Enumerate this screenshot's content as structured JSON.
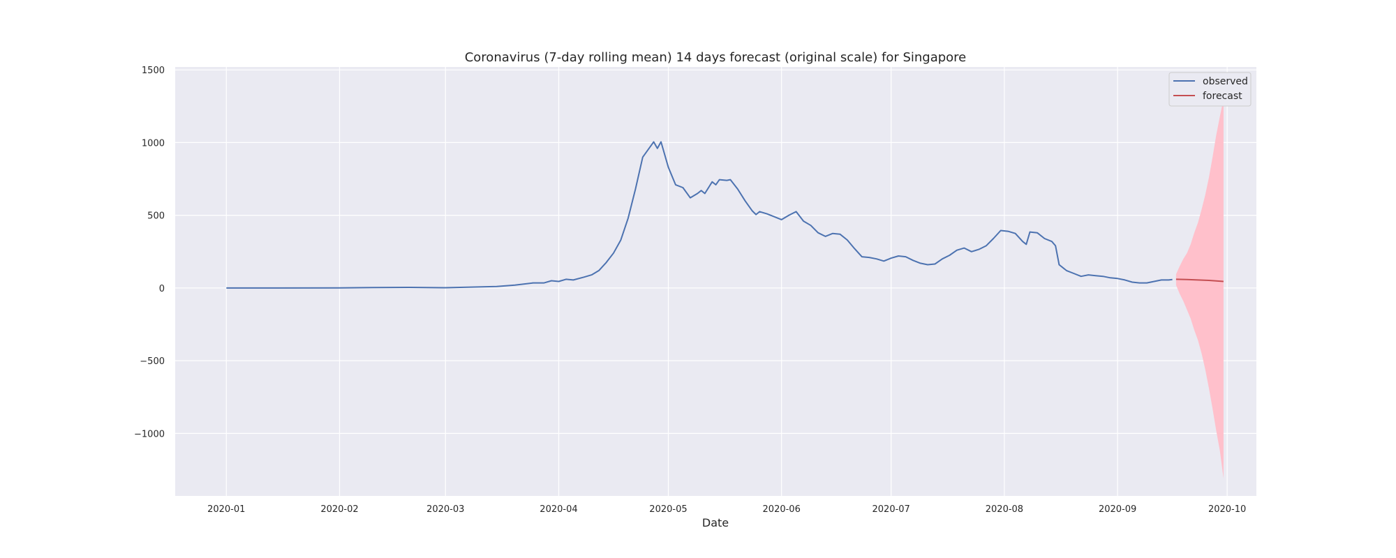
{
  "chart_data": {
    "type": "line",
    "title": "Coronavirus (7-day rolling mean) 14 days forecast (original scale) for Singapore",
    "xlabel": "Date",
    "ylabel": "",
    "x_ticks": [
      "2020-01",
      "2020-02",
      "2020-03",
      "2020-04",
      "2020-05",
      "2020-06",
      "2020-07",
      "2020-08",
      "2020-09",
      "2020-10"
    ],
    "y_ticks": [
      "1500",
      "1000",
      "500",
      "0",
      "−500",
      "−1000"
    ],
    "y_tick_values": [
      1500,
      1000,
      500,
      0,
      -500,
      -1000
    ],
    "xlim": [
      "2019-12-18",
      "2020-10-09"
    ],
    "ylim": [
      -1430,
      1520
    ],
    "grid": true,
    "legend_position": "top-right",
    "series": [
      {
        "name": "observed",
        "color": "#4c72b0",
        "points": [
          [
            "2020-01-01",
            0
          ],
          [
            "2020-01-15",
            0
          ],
          [
            "2020-02-01",
            1
          ],
          [
            "2020-02-10",
            3
          ],
          [
            "2020-02-20",
            4
          ],
          [
            "2020-03-01",
            2
          ],
          [
            "2020-03-10",
            7
          ],
          [
            "2020-03-15",
            10
          ],
          [
            "2020-03-20",
            20
          ],
          [
            "2020-03-25",
            35
          ],
          [
            "2020-03-28",
            35
          ],
          [
            "2020-03-30",
            50
          ],
          [
            "2020-04-01",
            45
          ],
          [
            "2020-04-03",
            60
          ],
          [
            "2020-04-05",
            55
          ],
          [
            "2020-04-08",
            75
          ],
          [
            "2020-04-10",
            90
          ],
          [
            "2020-04-12",
            120
          ],
          [
            "2020-04-14",
            175
          ],
          [
            "2020-04-16",
            240
          ],
          [
            "2020-04-18",
            330
          ],
          [
            "2020-04-20",
            480
          ],
          [
            "2020-04-22",
            680
          ],
          [
            "2020-04-24",
            900
          ],
          [
            "2020-04-26",
            970
          ],
          [
            "2020-04-27",
            1005
          ],
          [
            "2020-04-28",
            960
          ],
          [
            "2020-04-29",
            1005
          ],
          [
            "2020-05-01",
            830
          ],
          [
            "2020-05-03",
            710
          ],
          [
            "2020-05-05",
            690
          ],
          [
            "2020-05-07",
            620
          ],
          [
            "2020-05-09",
            650
          ],
          [
            "2020-05-10",
            670
          ],
          [
            "2020-05-11",
            650
          ],
          [
            "2020-05-13",
            730
          ],
          [
            "2020-05-14",
            710
          ],
          [
            "2020-05-15",
            745
          ],
          [
            "2020-05-17",
            740
          ],
          [
            "2020-05-18",
            745
          ],
          [
            "2020-05-20",
            680
          ],
          [
            "2020-05-22",
            600
          ],
          [
            "2020-05-24",
            530
          ],
          [
            "2020-05-25",
            505
          ],
          [
            "2020-05-26",
            525
          ],
          [
            "2020-05-28",
            510
          ],
          [
            "2020-05-30",
            490
          ],
          [
            "2020-06-01",
            470
          ],
          [
            "2020-06-03",
            500
          ],
          [
            "2020-06-05",
            525
          ],
          [
            "2020-06-07",
            460
          ],
          [
            "2020-06-09",
            430
          ],
          [
            "2020-06-11",
            380
          ],
          [
            "2020-06-13",
            355
          ],
          [
            "2020-06-15",
            375
          ],
          [
            "2020-06-17",
            370
          ],
          [
            "2020-06-19",
            330
          ],
          [
            "2020-06-21",
            270
          ],
          [
            "2020-06-23",
            215
          ],
          [
            "2020-06-25",
            210
          ],
          [
            "2020-06-27",
            200
          ],
          [
            "2020-06-29",
            185
          ],
          [
            "2020-07-01",
            205
          ],
          [
            "2020-07-03",
            220
          ],
          [
            "2020-07-05",
            215
          ],
          [
            "2020-07-07",
            190
          ],
          [
            "2020-07-09",
            170
          ],
          [
            "2020-07-11",
            160
          ],
          [
            "2020-07-13",
            165
          ],
          [
            "2020-07-15",
            200
          ],
          [
            "2020-07-17",
            225
          ],
          [
            "2020-07-19",
            260
          ],
          [
            "2020-07-21",
            275
          ],
          [
            "2020-07-23",
            250
          ],
          [
            "2020-07-25",
            265
          ],
          [
            "2020-07-27",
            290
          ],
          [
            "2020-07-29",
            340
          ],
          [
            "2020-07-31",
            395
          ],
          [
            "2020-08-02",
            390
          ],
          [
            "2020-08-04",
            375
          ],
          [
            "2020-08-06",
            320
          ],
          [
            "2020-08-07",
            300
          ],
          [
            "2020-08-08",
            385
          ],
          [
            "2020-08-10",
            380
          ],
          [
            "2020-08-12",
            340
          ],
          [
            "2020-08-14",
            320
          ],
          [
            "2020-08-15",
            290
          ],
          [
            "2020-08-16",
            160
          ],
          [
            "2020-08-18",
            120
          ],
          [
            "2020-08-20",
            100
          ],
          [
            "2020-08-22",
            80
          ],
          [
            "2020-08-24",
            90
          ],
          [
            "2020-08-26",
            85
          ],
          [
            "2020-08-28",
            80
          ],
          [
            "2020-08-30",
            70
          ],
          [
            "2020-09-01",
            65
          ],
          [
            "2020-09-03",
            55
          ],
          [
            "2020-09-05",
            40
          ],
          [
            "2020-09-07",
            35
          ],
          [
            "2020-09-09",
            35
          ],
          [
            "2020-09-11",
            45
          ],
          [
            "2020-09-13",
            55
          ],
          [
            "2020-09-15",
            55
          ],
          [
            "2020-09-16",
            58
          ]
        ]
      },
      {
        "name": "forecast",
        "color": "#c44e52",
        "points": [
          [
            "2020-09-17",
            60
          ],
          [
            "2020-09-20",
            58
          ],
          [
            "2020-09-23",
            55
          ],
          [
            "2020-09-26",
            52
          ],
          [
            "2020-09-30",
            45
          ]
        ]
      }
    ],
    "confidence_interval": {
      "color": "#ffc0cb",
      "dates": [
        "2020-09-17",
        "2020-09-18",
        "2020-09-19",
        "2020-09-20",
        "2020-09-21",
        "2020-09-22",
        "2020-09-23",
        "2020-09-24",
        "2020-09-25",
        "2020-09-26",
        "2020-09-27",
        "2020-09-28",
        "2020-09-29",
        "2020-09-30"
      ],
      "upper": [
        95,
        150,
        200,
        240,
        300,
        380,
        450,
        540,
        640,
        760,
        900,
        1050,
        1180,
        1300
      ],
      "lower": [
        20,
        -40,
        -90,
        -150,
        -210,
        -290,
        -360,
        -450,
        -560,
        -690,
        -830,
        -980,
        -1120,
        -1310
      ]
    }
  }
}
